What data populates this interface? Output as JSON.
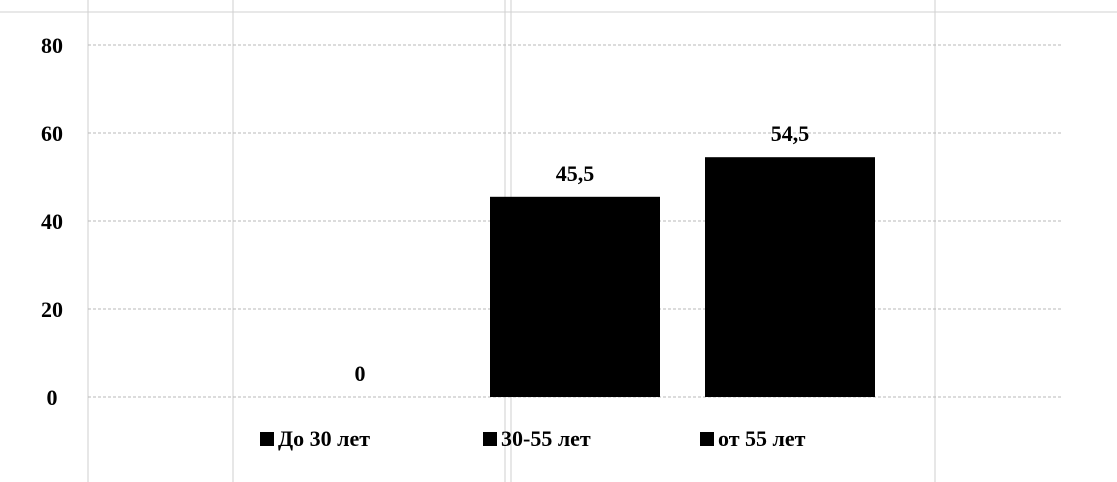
{
  "chart_data": {
    "type": "bar",
    "categories": [
      "До 30 лет",
      "30-55 лет",
      "от 55 лет"
    ],
    "values": [
      0,
      45.5,
      54.5
    ],
    "data_labels": [
      "0",
      "45,5",
      "54,5"
    ],
    "ylim": [
      0,
      80
    ],
    "yticks": [
      0,
      20,
      40,
      60,
      80
    ],
    "grid": true,
    "legend_position": "bottom",
    "bar_color": "#000000",
    "title": "",
    "xlabel": "",
    "ylabel": ""
  }
}
